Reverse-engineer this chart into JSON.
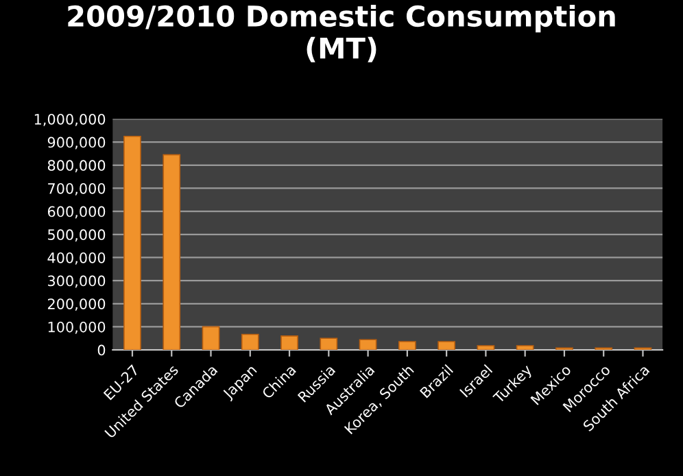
{
  "chart_data": {
    "type": "bar",
    "title": "2009/2010 Domestic Consumption\n(MT)",
    "categories": [
      "EU-27",
      "United States",
      "Canada",
      "Japan",
      "China",
      "Russia",
      "Australia",
      "Korea, South",
      "Brazil",
      "Israel",
      "Turkey",
      "Mexico",
      "Morocco",
      "South Africa"
    ],
    "values": [
      925000,
      845000,
      100000,
      67000,
      60000,
      50000,
      44000,
      36000,
      36000,
      18000,
      18000,
      8000,
      8000,
      8000
    ],
    "color": "#f0922b",
    "ylim": [
      0,
      1000000
    ],
    "yticks": [
      {
        "value": 0,
        "label": "0"
      },
      {
        "value": 100000,
        "label": "100,000"
      },
      {
        "value": 200000,
        "label": "200,000"
      },
      {
        "value": 300000,
        "label": "300,000"
      },
      {
        "value": 400000,
        "label": "400,000"
      },
      {
        "value": 500000,
        "label": "500,000"
      },
      {
        "value": 600000,
        "label": "600,000"
      },
      {
        "value": 700000,
        "label": "700,000"
      },
      {
        "value": 800000,
        "label": "800,000"
      },
      {
        "value": 900000,
        "label": "900,000"
      },
      {
        "value": 1000000,
        "label": "1,000,000"
      }
    ],
    "grid": "y",
    "legend": false
  }
}
